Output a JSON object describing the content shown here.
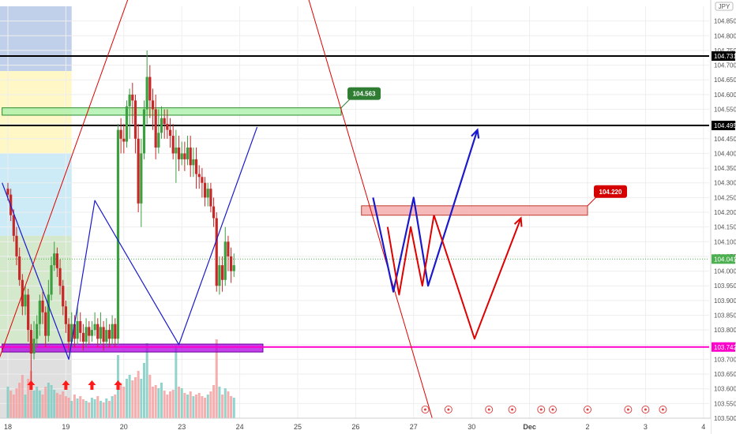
{
  "symbol_badge": "JPY",
  "chart_data": {
    "type": "candlestick",
    "title": "",
    "xlabel": "",
    "ylabel": "",
    "ylim": [
      103.5,
      104.9
    ],
    "y_ticks": [
      "104.850",
      "104.800",
      "104.750",
      "104.700",
      "104.650",
      "104.600",
      "104.550",
      "104.500",
      "104.450",
      "104.400",
      "104.350",
      "104.300",
      "104.250",
      "104.200",
      "104.150",
      "104.100",
      "104.050",
      "104.000",
      "103.950",
      "103.900",
      "103.850",
      "103.800",
      "103.750",
      "103.700",
      "103.650",
      "103.600",
      "103.550",
      "103.500"
    ],
    "x_ticks": [
      {
        "label": "18",
        "x": 0
      },
      {
        "label": "19",
        "x": 20
      },
      {
        "label": "20",
        "x": 40
      },
      {
        "label": "23",
        "x": 60
      },
      {
        "label": "24",
        "x": 80
      },
      {
        "label": "25",
        "x": 100
      },
      {
        "label": "26",
        "x": 120
      },
      {
        "label": "27",
        "x": 140
      },
      {
        "label": "30",
        "x": 160
      },
      {
        "label": "Dec",
        "x": 180
      },
      {
        "label": "2",
        "x": 200
      },
      {
        "label": "3",
        "x": 220
      },
      {
        "label": "4",
        "x": 240
      }
    ],
    "candles": [
      [
        0,
        104.28,
        104.26,
        104.3,
        104.24
      ],
      [
        1,
        104.26,
        104.19,
        104.28,
        104.17
      ],
      [
        2,
        104.19,
        104.12,
        104.21,
        104.1
      ],
      [
        3,
        104.12,
        104.05,
        104.15,
        104.02
      ],
      [
        4,
        104.05,
        103.97,
        104.08,
        103.95
      ],
      [
        5,
        103.97,
        103.88,
        103.99,
        103.85
      ],
      [
        6,
        103.88,
        103.92,
        103.95,
        103.85
      ],
      [
        7,
        103.92,
        103.8,
        103.94,
        103.76
      ],
      [
        8,
        103.8,
        103.72,
        103.82,
        103.62
      ],
      [
        9,
        103.72,
        103.77,
        103.83,
        103.7
      ],
      [
        10,
        103.77,
        103.82,
        103.85,
        103.74
      ],
      [
        11,
        103.82,
        103.9,
        103.92,
        103.78
      ],
      [
        12,
        103.9,
        103.86,
        103.93,
        103.82
      ],
      [
        13,
        103.86,
        103.78,
        103.88,
        103.74
      ],
      [
        14,
        103.78,
        103.92,
        103.97,
        103.76
      ],
      [
        15,
        103.92,
        104.02,
        104.05,
        103.9
      ],
      [
        16,
        104.02,
        104.06,
        104.1,
        104.0
      ],
      [
        17,
        104.06,
        104.01,
        104.08,
        103.98
      ],
      [
        18,
        104.01,
        103.95,
        104.04,
        103.92
      ],
      [
        19,
        103.95,
        103.88,
        103.97,
        103.85
      ],
      [
        20,
        103.88,
        103.82,
        103.9,
        103.79
      ],
      [
        21,
        103.82,
        103.76,
        103.84,
        103.73
      ],
      [
        22,
        103.76,
        103.82,
        103.86,
        103.74
      ],
      [
        23,
        103.82,
        103.77,
        103.85,
        103.74
      ],
      [
        24,
        103.77,
        103.83,
        103.88,
        103.75
      ],
      [
        25,
        103.83,
        103.79,
        103.86,
        103.76
      ],
      [
        26,
        103.79,
        103.76,
        103.82,
        103.73
      ],
      [
        27,
        103.76,
        103.81,
        103.84,
        103.74
      ],
      [
        28,
        103.81,
        103.78,
        103.83,
        103.75
      ],
      [
        29,
        103.78,
        103.8,
        103.83,
        103.76
      ],
      [
        30,
        103.8,
        103.82,
        103.86,
        103.78
      ],
      [
        31,
        103.82,
        103.77,
        103.84,
        103.74
      ],
      [
        32,
        103.77,
        103.81,
        103.86,
        103.75
      ],
      [
        33,
        103.81,
        103.76,
        103.83,
        103.73
      ],
      [
        34,
        103.76,
        103.8,
        103.84,
        103.74
      ],
      [
        35,
        103.8,
        103.77,
        103.82,
        103.74
      ],
      [
        36,
        103.77,
        103.82,
        103.85,
        103.75
      ],
      [
        37,
        103.82,
        103.77,
        103.84,
        103.74
      ],
      [
        38,
        103.77,
        104.48,
        104.5,
        103.75
      ],
      [
        39,
        104.48,
        104.45,
        104.52,
        104.4
      ],
      [
        40,
        104.45,
        104.44,
        104.5,
        104.4
      ],
      [
        41,
        104.44,
        104.56,
        104.58,
        104.42
      ],
      [
        42,
        104.56,
        104.6,
        104.62,
        104.45
      ],
      [
        43,
        104.6,
        104.58,
        104.64,
        104.5
      ],
      [
        44,
        104.58,
        104.45,
        104.6,
        104.4
      ],
      [
        45,
        104.45,
        104.23,
        104.5,
        104.2
      ],
      [
        46,
        104.23,
        104.4,
        104.45,
        104.15
      ],
      [
        47,
        104.4,
        104.55,
        104.58,
        104.38
      ],
      [
        48,
        104.55,
        104.66,
        104.75,
        104.5
      ],
      [
        49,
        104.66,
        104.58,
        104.7,
        104.52
      ],
      [
        50,
        104.58,
        104.55,
        104.62,
        104.48
      ],
      [
        51,
        104.55,
        104.42,
        104.6,
        104.38
      ],
      [
        52,
        104.42,
        104.47,
        104.55,
        104.4
      ],
      [
        53,
        104.47,
        104.52,
        104.56,
        104.45
      ],
      [
        54,
        104.52,
        104.5,
        104.55,
        104.45
      ],
      [
        55,
        104.5,
        104.48,
        104.55,
        104.45
      ],
      [
        56,
        104.48,
        104.46,
        104.52,
        104.42
      ],
      [
        57,
        104.46,
        104.4,
        104.5,
        104.38
      ],
      [
        58,
        104.4,
        104.42,
        104.48,
        104.3
      ],
      [
        59,
        104.42,
        104.38,
        104.46,
        104.34
      ],
      [
        60,
        104.38,
        104.4,
        104.44,
        104.36
      ],
      [
        61,
        104.4,
        104.38,
        104.44,
        104.34
      ],
      [
        62,
        104.38,
        104.42,
        104.46,
        104.36
      ],
      [
        63,
        104.42,
        104.36,
        104.46,
        104.32
      ],
      [
        64,
        104.36,
        104.38,
        104.42,
        104.32
      ],
      [
        65,
        104.38,
        104.33,
        104.42,
        104.28
      ],
      [
        66,
        104.33,
        104.32,
        104.36,
        104.28
      ],
      [
        67,
        104.32,
        104.3,
        104.35,
        104.25
      ],
      [
        68,
        104.3,
        104.25,
        104.32,
        104.22
      ],
      [
        69,
        104.25,
        104.28,
        104.3,
        104.22
      ],
      [
        70,
        104.28,
        104.22,
        104.3,
        104.2
      ],
      [
        71,
        104.22,
        104.18,
        104.25,
        104.15
      ],
      [
        72,
        104.18,
        103.95,
        104.2,
        103.93
      ],
      [
        73,
        103.95,
        104.02,
        104.05,
        103.92
      ],
      [
        74,
        104.02,
        103.97,
        104.05,
        103.93
      ],
      [
        75,
        103.97,
        104.1,
        104.15,
        103.95
      ],
      [
        76,
        104.1,
        104.05,
        104.12,
        104.0
      ],
      [
        77,
        104.05,
        104.0,
        104.08,
        103.96
      ],
      [
        78,
        104.0,
        104.02,
        104.06,
        103.98
      ]
    ],
    "volume": [
      [
        0,
        0.4,
        "up"
      ],
      [
        1,
        0.35,
        "down"
      ],
      [
        2,
        0.3,
        "down"
      ],
      [
        3,
        0.38,
        "down"
      ],
      [
        4,
        0.45,
        "down"
      ],
      [
        5,
        0.55,
        "down"
      ],
      [
        6,
        0.3,
        "up"
      ],
      [
        7,
        0.5,
        "down"
      ],
      [
        8,
        0.6,
        "down"
      ],
      [
        9,
        0.35,
        "up"
      ],
      [
        10,
        0.4,
        "up"
      ],
      [
        11,
        0.35,
        "up"
      ],
      [
        12,
        0.3,
        "down"
      ],
      [
        13,
        0.4,
        "down"
      ],
      [
        14,
        0.45,
        "up"
      ],
      [
        15,
        0.42,
        "up"
      ],
      [
        16,
        0.36,
        "up"
      ],
      [
        17,
        0.32,
        "down"
      ],
      [
        18,
        0.3,
        "down"
      ],
      [
        19,
        0.34,
        "down"
      ],
      [
        20,
        0.28,
        "down"
      ],
      [
        21,
        0.26,
        "down"
      ],
      [
        22,
        0.22,
        "up"
      ],
      [
        23,
        0.3,
        "down"
      ],
      [
        24,
        0.25,
        "up"
      ],
      [
        25,
        0.28,
        "down"
      ],
      [
        26,
        0.24,
        "down"
      ],
      [
        27,
        0.22,
        "up"
      ],
      [
        28,
        0.2,
        "down"
      ],
      [
        29,
        0.26,
        "up"
      ],
      [
        30,
        0.24,
        "up"
      ],
      [
        31,
        0.28,
        "down"
      ],
      [
        32,
        0.22,
        "up"
      ],
      [
        33,
        0.2,
        "down"
      ],
      [
        34,
        0.25,
        "up"
      ],
      [
        35,
        0.22,
        "down"
      ],
      [
        36,
        0.28,
        "up"
      ],
      [
        37,
        0.3,
        "down"
      ],
      [
        38,
        0.8,
        "up"
      ],
      [
        39,
        0.45,
        "down"
      ],
      [
        40,
        0.4,
        "down"
      ],
      [
        41,
        0.5,
        "up"
      ],
      [
        42,
        0.55,
        "up"
      ],
      [
        43,
        0.48,
        "down"
      ],
      [
        44,
        0.52,
        "down"
      ],
      [
        45,
        0.6,
        "down"
      ],
      [
        46,
        0.5,
        "up"
      ],
      [
        47,
        0.7,
        "up"
      ],
      [
        48,
        0.95,
        "up"
      ],
      [
        49,
        0.55,
        "down"
      ],
      [
        50,
        0.4,
        "down"
      ],
      [
        51,
        0.42,
        "down"
      ],
      [
        52,
        0.38,
        "up"
      ],
      [
        53,
        0.45,
        "up"
      ],
      [
        54,
        0.35,
        "down"
      ],
      [
        55,
        0.3,
        "down"
      ],
      [
        56,
        0.34,
        "down"
      ],
      [
        57,
        0.36,
        "down"
      ],
      [
        58,
        0.92,
        "up"
      ],
      [
        59,
        0.4,
        "down"
      ],
      [
        60,
        0.38,
        "up"
      ],
      [
        61,
        0.32,
        "down"
      ],
      [
        62,
        0.3,
        "up"
      ],
      [
        63,
        0.34,
        "down"
      ],
      [
        64,
        0.28,
        "up"
      ],
      [
        65,
        0.3,
        "down"
      ],
      [
        66,
        0.32,
        "down"
      ],
      [
        67,
        0.28,
        "down"
      ],
      [
        68,
        0.26,
        "down"
      ],
      [
        69,
        0.3,
        "up"
      ],
      [
        70,
        0.34,
        "down"
      ],
      [
        71,
        0.42,
        "down"
      ],
      [
        72,
        1.0,
        "down"
      ],
      [
        73,
        0.4,
        "up"
      ],
      [
        74,
        0.3,
        "down"
      ],
      [
        75,
        0.38,
        "up"
      ],
      [
        76,
        0.34,
        "down"
      ],
      [
        77,
        0.28,
        "down"
      ],
      [
        78,
        0.26,
        "up"
      ]
    ],
    "price_levels": [
      {
        "name": "level-104.731",
        "price": 104.731,
        "color": "#000000",
        "label": "104.731"
      },
      {
        "name": "level-104.495",
        "price": 104.495,
        "color": "#000000",
        "label": "104.495"
      },
      {
        "name": "level-103.742",
        "price": 103.742,
        "color": "#ff00cc",
        "label": "103.742"
      }
    ],
    "current_price": {
      "price": 104.041,
      "label": "104.041",
      "color": "#4caf50"
    },
    "zones": [
      {
        "name": "resistance-zone-104.563",
        "x1": -2,
        "x2": 115,
        "p1": 104.53,
        "p2": 104.555,
        "fill": "#a5f0a5",
        "stroke": "#2e8b2e",
        "tag": "104.563",
        "tag_color": "#2e7d32"
      },
      {
        "name": "support-zone-104.220",
        "x1": 122,
        "x2": 200,
        "p1": 104.19,
        "p2": 104.222,
        "fill": "#f4a3a3",
        "stroke": "#c0392b",
        "tag": "104.220",
        "tag_color": "#d50000"
      },
      {
        "name": "purple-zone",
        "x1": -2,
        "x2": 88,
        "p1": 103.725,
        "p2": 103.752,
        "fill": "#b000e0",
        "stroke": "#6a00a0",
        "tag": "",
        "tag_color": ""
      }
    ],
    "bg_blocks": [
      {
        "color": "#8ea9d8",
        "p1": 104.68,
        "p2": 104.9,
        "x2": 22,
        "alpha": 0.55
      },
      {
        "color": "#fff3a0",
        "p1": 104.4,
        "p2": 104.68,
        "x2": 22,
        "alpha": 0.6
      },
      {
        "color": "#9ad8ee",
        "p1": 104.12,
        "p2": 104.4,
        "x2": 22,
        "alpha": 0.5
      },
      {
        "color": "#b8d8a8",
        "p1": 103.75,
        "p2": 104.12,
        "x2": 22,
        "alpha": 0.6
      },
      {
        "color": "#c0c0c0",
        "p1": 103.5,
        "p2": 103.75,
        "x2": 22,
        "alpha": 0.5
      }
    ],
    "drawings": [
      {
        "name": "red-channel-line-left",
        "color": "#e00000",
        "width": 1,
        "pts": [
          [
            -6,
            103.62
          ],
          [
            46,
            105.05
          ]
        ]
      },
      {
        "name": "red-channel-line-right",
        "color": "#e00000",
        "width": 1,
        "pts": [
          [
            100,
            105.05
          ],
          [
            147,
            103.48
          ]
        ]
      },
      {
        "name": "blue-zigzag-past",
        "color": "#1a1acc",
        "width": 1.2,
        "pts": [
          [
            -2,
            104.3
          ],
          [
            21,
            103.7
          ],
          [
            30,
            104.24
          ],
          [
            59,
            103.75
          ],
          [
            86,
            104.49
          ]
        ]
      },
      {
        "name": "blue-projection",
        "color": "#1a1acc",
        "width": 2.2,
        "pts": [
          [
            126,
            104.25
          ],
          [
            133,
            103.93
          ],
          [
            140,
            104.25
          ],
          [
            145,
            103.95
          ],
          [
            162,
            104.48
          ]
        ],
        "arrow": true
      },
      {
        "name": "red-zigzag-short",
        "color": "#e00000",
        "width": 2,
        "pts": [
          [
            131,
            104.15
          ],
          [
            135,
            103.92
          ],
          [
            139,
            104.15
          ],
          [
            143,
            103.95
          ],
          [
            147,
            104.19
          ]
        ]
      },
      {
        "name": "red-projection",
        "color": "#e00000",
        "width": 2,
        "pts": [
          [
            147,
            104.19
          ],
          [
            161,
            103.77
          ],
          [
            177,
            104.18
          ]
        ],
        "arrow": true
      }
    ],
    "bull_arrows": [
      8,
      20,
      29,
      38
    ],
    "events": [
      144,
      152,
      166,
      174,
      184,
      188,
      200,
      214,
      220,
      226
    ]
  }
}
